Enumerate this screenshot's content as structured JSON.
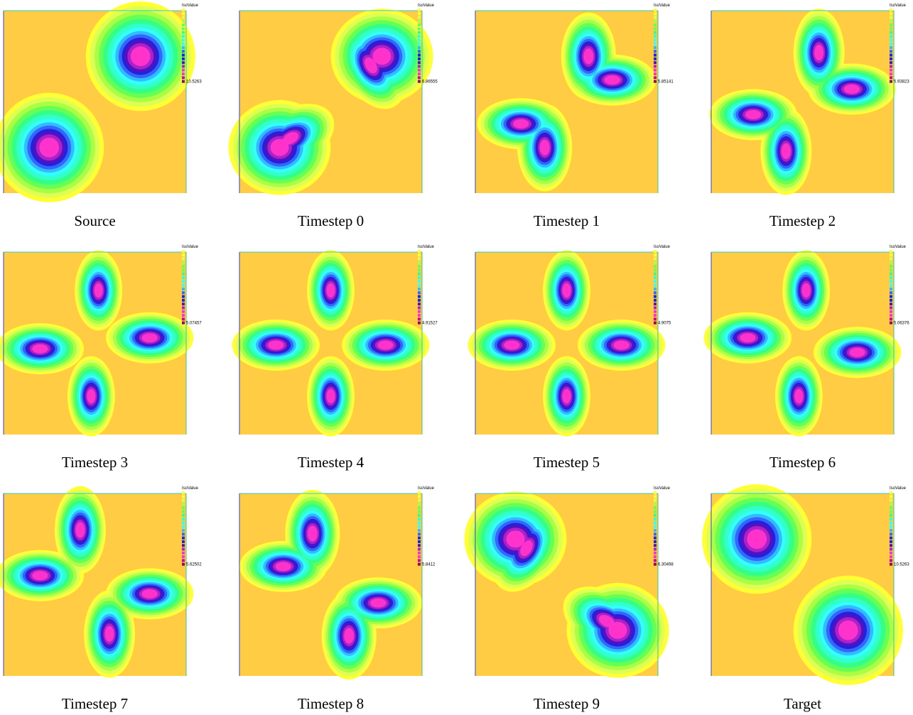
{
  "panels": [
    {
      "caption": "Source",
      "legend": {
        "title": "IsoValue",
        "values": [
          "10.5263"
        ]
      }
    },
    {
      "caption": "Timestep 0",
      "legend": {
        "title": "IsoValue",
        "values": [
          "6.86555"
        ]
      }
    },
    {
      "caption": "Timestep 1",
      "legend": {
        "title": "IsoValue",
        "values": [
          "5.85141"
        ]
      }
    },
    {
      "caption": "Timestep 2",
      "legend": {
        "title": "IsoValue",
        "values": [
          "5.93823"
        ]
      }
    },
    {
      "caption": "Timestep 3",
      "legend": {
        "title": "IsoValue",
        "values": [
          "5.07457"
        ]
      }
    },
    {
      "caption": "Timestep 4",
      "legend": {
        "title": "IsoValue",
        "values": [
          "4.91527"
        ]
      }
    },
    {
      "caption": "Timestep 5",
      "legend": {
        "title": "IsoValue",
        "values": [
          "4.9075"
        ]
      }
    },
    {
      "caption": "Timestep 6",
      "legend": {
        "title": "IsoValue",
        "values": [
          "5.06376"
        ]
      }
    },
    {
      "caption": "Timestep 7",
      "legend": {
        "title": "IsoValue",
        "values": [
          "5.62502"
        ]
      }
    },
    {
      "caption": "Timestep 8",
      "legend": {
        "title": "IsoValue",
        "values": [
          "5.8412"
        ]
      }
    },
    {
      "caption": "Timestep 9",
      "legend": {
        "title": "IsoValue",
        "values": [
          "6.30498"
        ]
      }
    },
    {
      "caption": "Target",
      "legend": {
        "title": "IsoValue",
        "values": [
          "10.5263"
        ]
      }
    }
  ]
}
